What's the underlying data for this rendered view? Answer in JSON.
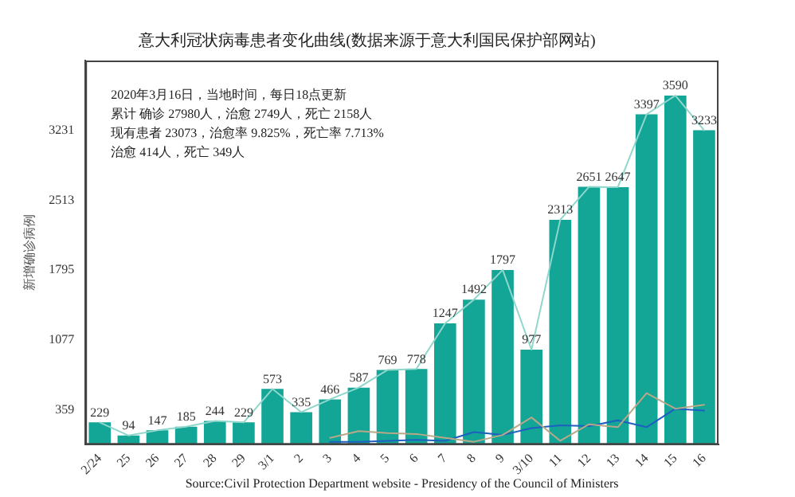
{
  "chart_data": {
    "type": "bar",
    "title": "意大利冠状病毒患者变化曲线(数据来源于意大利国民保护部网站)",
    "ylabel": "新增确诊病例",
    "categories": [
      "2/24",
      "25",
      "26",
      "27",
      "28",
      "29",
      "3/1",
      "2",
      "3",
      "4",
      "5",
      "6",
      "7",
      "8",
      "9",
      "3/10",
      "11",
      "12",
      "13",
      "14",
      "15",
      "16"
    ],
    "series": [
      {
        "color": "#13a596",
        "values": [
          229,
          94,
          147,
          185,
          244,
          229,
          573,
          335,
          466,
          587,
          769,
          778,
          1247,
          1492,
          1797,
          977,
          2313,
          2651,
          2647,
          3397,
          3590,
          3233
        ],
        "value_labels": [
          "229",
          "94",
          "147",
          "185",
          "244",
          "229",
          "573",
          "335",
          "466",
          "587",
          "769",
          "778",
          "1247",
          "1492",
          "1797",
          "977",
          "2313",
          "2651",
          "2647",
          "3397",
          "3590",
          "3233"
        ]
      },
      {
        "type": "line",
        "color": "#8fd6cc",
        "values": [
          229,
          94,
          147,
          185,
          244,
          229,
          573,
          335,
          466,
          587,
          769,
          778,
          1247,
          1492,
          1797,
          977,
          2313,
          2651,
          2647,
          3397,
          3590,
          3233
        ]
      },
      {
        "type": "line",
        "color": "#b8a888",
        "values": [
          null,
          null,
          null,
          null,
          null,
          null,
          null,
          null,
          70,
          140,
          120,
          110,
          70,
          30,
          100,
          280,
          40,
          210,
          180,
          530,
          370,
          410
        ]
      },
      {
        "type": "line",
        "color": "#1f5fbf",
        "values": [
          null,
          null,
          null,
          null,
          null,
          null,
          null,
          null,
          30,
          30,
          40,
          50,
          40,
          130,
          100,
          170,
          200,
          190,
          250,
          180,
          370,
          350
        ]
      }
    ],
    "ylim": [
      0,
      3950
    ],
    "yticks": [
      359,
      1077,
      1795,
      2513,
      3231
    ],
    "grid": false,
    "legend": false,
    "marker": "none",
    "annotations": [
      "2020年3月16日，当地时间，每日18点更新",
      "累计 确诊 27980人，治愈 2749人，死亡 2158人",
      "现有患者 23073，治愈率 9.825%，死亡率 7.713%",
      "治愈 414人，死亡 349人",
      "Source:Civil Protection Department website - Presidency of the Council of Ministers"
    ]
  }
}
